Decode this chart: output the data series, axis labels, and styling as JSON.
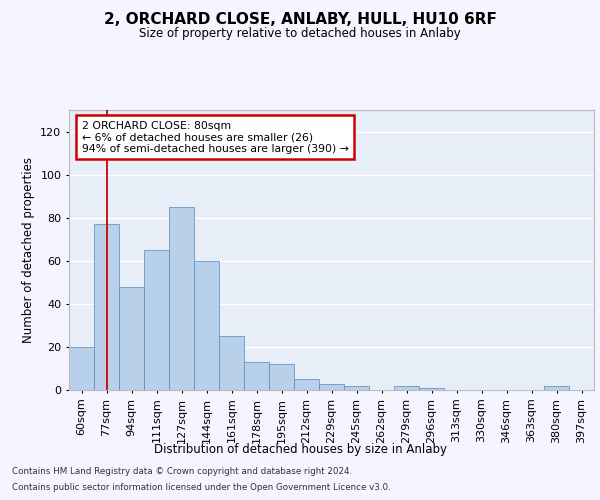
{
  "title": "2, ORCHARD CLOSE, ANLABY, HULL, HU10 6RF",
  "subtitle": "Size of property relative to detached houses in Anlaby",
  "xlabel": "Distribution of detached houses by size in Anlaby",
  "ylabel": "Number of detached properties",
  "bar_color": "#b8d0ea",
  "bar_edge_color": "#5588bb",
  "categories": [
    "60sqm",
    "77sqm",
    "94sqm",
    "111sqm",
    "127sqm",
    "144sqm",
    "161sqm",
    "178sqm",
    "195sqm",
    "212sqm",
    "229sqm",
    "245sqm",
    "262sqm",
    "279sqm",
    "296sqm",
    "313sqm",
    "330sqm",
    "346sqm",
    "363sqm",
    "380sqm",
    "397sqm"
  ],
  "values": [
    20,
    77,
    48,
    65,
    85,
    60,
    25,
    13,
    12,
    5,
    3,
    2,
    0,
    2,
    1,
    0,
    0,
    0,
    0,
    2,
    0
  ],
  "ylim": [
    0,
    130
  ],
  "yticks": [
    0,
    20,
    40,
    60,
    80,
    100,
    120
  ],
  "red_line_index": 1,
  "annotation_text": "2 ORCHARD CLOSE: 80sqm\n← 6% of detached houses are smaller (26)\n94% of semi-detached houses are larger (390) →",
  "annotation_box_facecolor": "#ffffff",
  "annotation_box_edgecolor": "#cc0000",
  "footnote_line1": "Contains HM Land Registry data © Crown copyright and database right 2024.",
  "footnote_line2": "Contains public sector information licensed under the Open Government Licence v3.0.",
  "background_color": "#e8eef8",
  "grid_color": "#ffffff",
  "fig_bg_color": "#f5f5ff",
  "fig_width": 6.0,
  "fig_height": 5.0,
  "dpi": 100
}
